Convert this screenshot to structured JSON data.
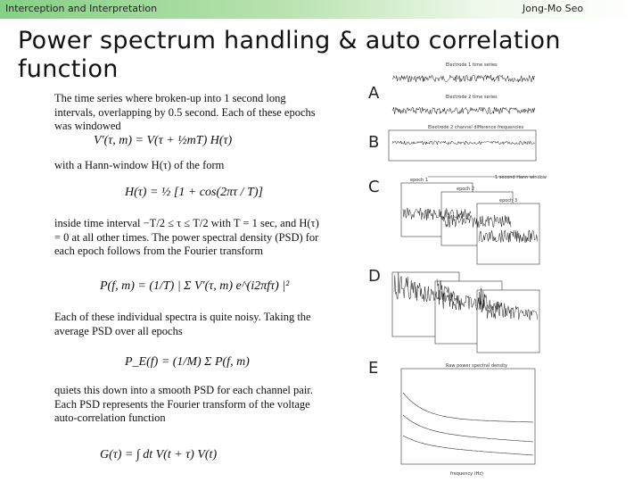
{
  "header": {
    "section": "Interception and Interpretation",
    "author": "Jong-Mo Seo"
  },
  "title": "Power spectrum handling & auto correlation function",
  "body": {
    "paragraphs": [
      "The time series where broken-up into 1 second long intervals, overlapping by 0.5 second. Each of these epochs was windowed",
      "with a Hann-window H(τ) of the form",
      "inside time interval −T/2 ≤ τ ≤ T/2 with T = 1 sec, and H(τ) = 0 at all other times. The power spectral density (PSD) for each epoch follows from the Fourier transform",
      "Each of these individual spectra is quite noisy. Taking the average PSD over all epochs",
      "quiets this down into a smooth PSD for each channel pair. Each PSD represents the Fourier transform of the voltage auto-correlation function"
    ],
    "equations": [
      "V′(τ, m) = V(τ + ½mT) H(τ)",
      "H(τ) = ½ [1 + cos(2πτ / T)]",
      "P(f, m) = (1/T) | Σ V′(τ, m) e^(i2πfτ) |²",
      "P_E(f) = (1/M) Σ P(f, m)",
      "G(τ) = ∫ dt V(t + τ) V(t)"
    ]
  },
  "figure": {
    "panels": [
      "A",
      "B",
      "C",
      "D",
      "E"
    ],
    "captions": [
      "Electrode 1 time series",
      "Electrode 2 time series",
      "Electrode 2 channel difference frequencies",
      "1 second Hann window",
      "epoch 1",
      "epoch 2",
      "epoch 3",
      "Raw power spectral density",
      "frequency (Hz)"
    ]
  }
}
